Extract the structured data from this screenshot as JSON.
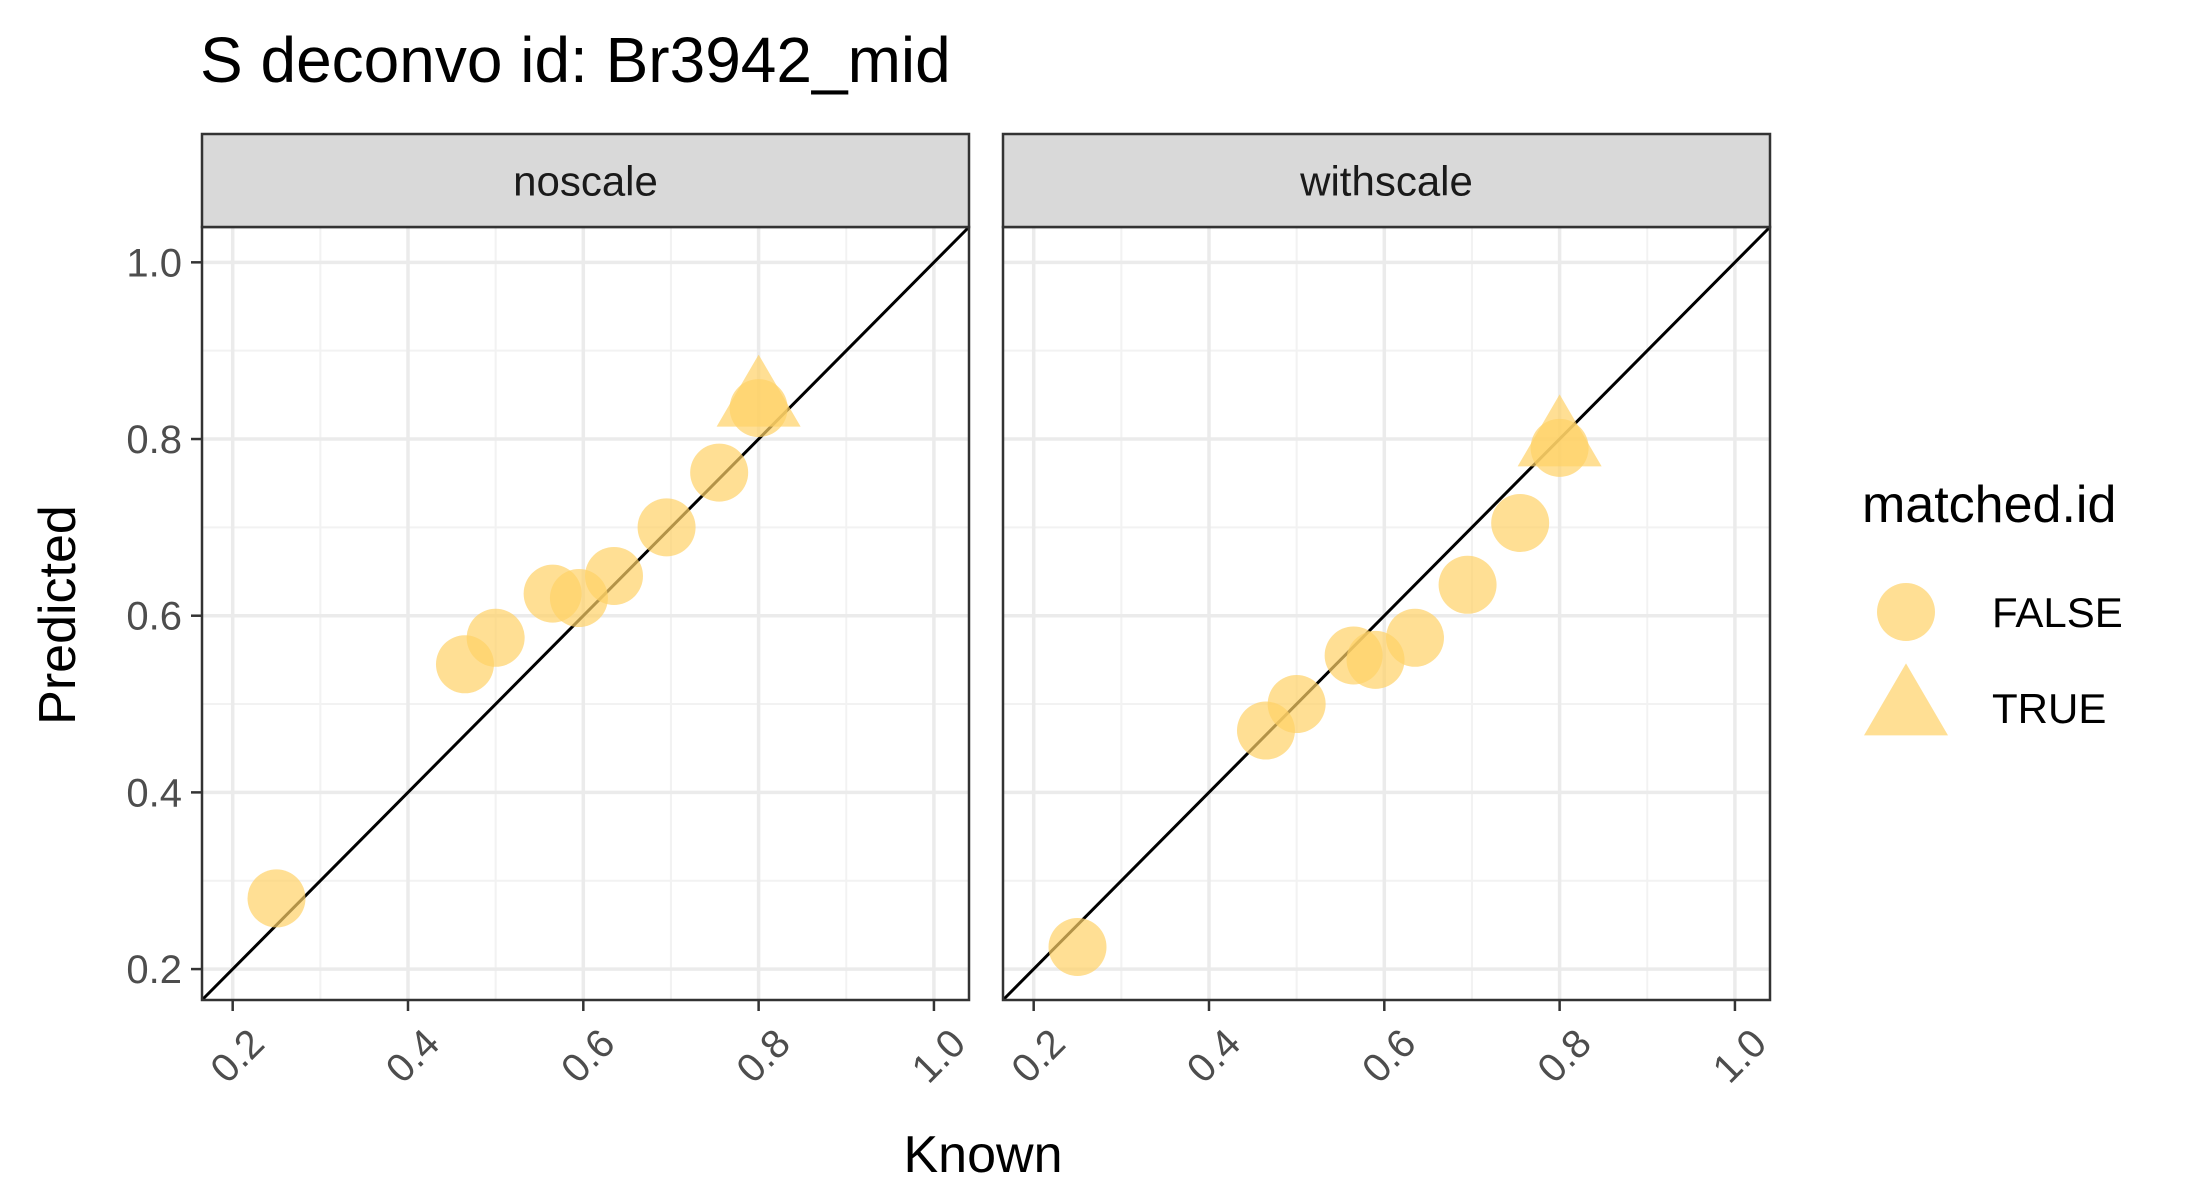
{
  "chart_data": {
    "type": "scatter",
    "title": "S deconvo id: Br3942_mid",
    "xlabel": "Known",
    "ylabel": "Predicted",
    "xlim": [
      0.165,
      1.04
    ],
    "ylim": [
      0.165,
      1.04
    ],
    "xticks": [
      0.2,
      0.4,
      0.6,
      0.8,
      1.0
    ],
    "yticks": [
      0.2,
      0.4,
      0.6,
      0.8,
      1.0
    ],
    "xtick_labels": [
      "0.2",
      "0.4",
      "0.6",
      "0.8",
      "1.0"
    ],
    "ytick_labels": [
      "0.2",
      "0.4",
      "0.6",
      "0.8",
      "1.0"
    ],
    "grid": true,
    "reference_line": "y = x",
    "point_color": "#FFD166",
    "point_opacity": 0.7,
    "legend": {
      "title": "matched.id",
      "position": "right",
      "entries": [
        {
          "label": "FALSE",
          "shape": "circle"
        },
        {
          "label": "TRUE",
          "shape": "triangle"
        }
      ]
    },
    "panels": [
      {
        "name": "noscale",
        "points": [
          {
            "x": 0.25,
            "y": 0.28,
            "matched": "FALSE"
          },
          {
            "x": 0.465,
            "y": 0.545,
            "matched": "FALSE"
          },
          {
            "x": 0.5,
            "y": 0.575,
            "matched": "FALSE"
          },
          {
            "x": 0.565,
            "y": 0.625,
            "matched": "FALSE"
          },
          {
            "x": 0.595,
            "y": 0.62,
            "matched": "FALSE"
          },
          {
            "x": 0.635,
            "y": 0.645,
            "matched": "FALSE"
          },
          {
            "x": 0.695,
            "y": 0.7,
            "matched": "FALSE"
          },
          {
            "x": 0.755,
            "y": 0.762,
            "matched": "FALSE"
          },
          {
            "x": 0.8,
            "y": 0.835,
            "matched": "FALSE"
          },
          {
            "x": 0.8,
            "y": 0.845,
            "matched": "TRUE"
          }
        ]
      },
      {
        "name": "withscale",
        "points": [
          {
            "x": 0.25,
            "y": 0.225,
            "matched": "FALSE"
          },
          {
            "x": 0.465,
            "y": 0.47,
            "matched": "FALSE"
          },
          {
            "x": 0.5,
            "y": 0.5,
            "matched": "FALSE"
          },
          {
            "x": 0.565,
            "y": 0.555,
            "matched": "FALSE"
          },
          {
            "x": 0.59,
            "y": 0.55,
            "matched": "FALSE"
          },
          {
            "x": 0.635,
            "y": 0.575,
            "matched": "FALSE"
          },
          {
            "x": 0.695,
            "y": 0.635,
            "matched": "FALSE"
          },
          {
            "x": 0.755,
            "y": 0.705,
            "matched": "FALSE"
          },
          {
            "x": 0.8,
            "y": 0.79,
            "matched": "FALSE"
          },
          {
            "x": 0.8,
            "y": 0.8,
            "matched": "TRUE"
          }
        ]
      }
    ]
  }
}
